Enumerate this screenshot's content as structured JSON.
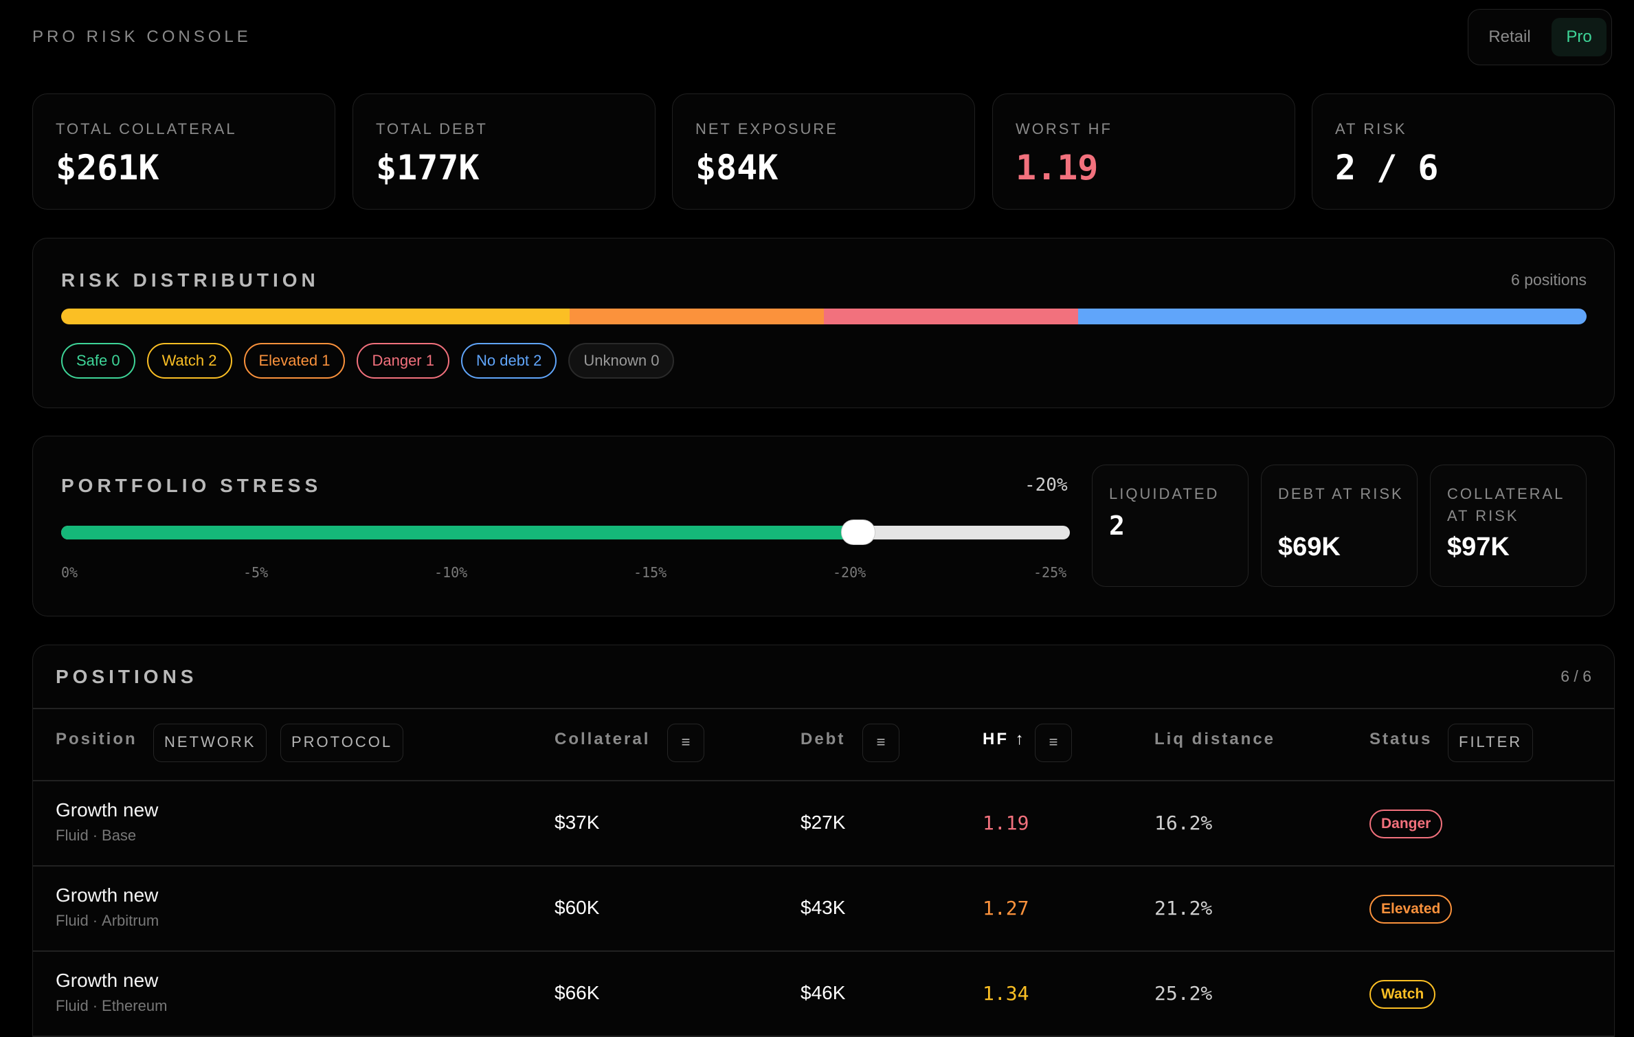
{
  "header": {
    "title": "PRO RISK CONSOLE",
    "modes": [
      "Retail",
      "Pro"
    ],
    "active_mode": "Pro"
  },
  "stats": [
    {
      "label": "TOTAL COLLATERAL",
      "value": "$261K"
    },
    {
      "label": "TOTAL DEBT",
      "value": "$177K"
    },
    {
      "label": "NET EXPOSURE",
      "value": "$84K"
    },
    {
      "label": "WORST HF",
      "value": "1.19"
    },
    {
      "label": "AT RISK",
      "value": "2 / 6"
    }
  ],
  "risk_distribution": {
    "title": "RISK DISTRIBUTION",
    "meta": "6 positions",
    "segments": [
      {
        "name": "Watch",
        "count": 2,
        "color": "#fbbf24"
      },
      {
        "name": "Elevated",
        "count": 1,
        "color": "#fb923c"
      },
      {
        "name": "Danger",
        "count": 1,
        "color": "#f2717d"
      },
      {
        "name": "No debt",
        "count": 2,
        "color": "#60a5fa"
      }
    ],
    "pills": [
      {
        "label": "Safe 0",
        "color": "#3ed598"
      },
      {
        "label": "Watch 2",
        "color": "#fbbf24"
      },
      {
        "label": "Elevated 1",
        "color": "#fb923c"
      },
      {
        "label": "Danger 1",
        "color": "#f2717d"
      },
      {
        "label": "No debt 2",
        "color": "#60a5fa"
      },
      {
        "label": "Unknown 0",
        "color": "#9a9a9a"
      }
    ]
  },
  "stress": {
    "title": "PORTFOLIO STRESS",
    "value_label": "-20%",
    "slider_fraction": 0.79,
    "ticks": [
      "0%",
      "-5%",
      "-10%",
      "-15%",
      "-20%",
      "-25%"
    ],
    "cards": [
      {
        "label": "LIQUIDATED",
        "value": "2"
      },
      {
        "label": "DEBT AT RISK",
        "value": "$69K"
      },
      {
        "label": "COLLATERAL AT RISK",
        "value": "$97K"
      }
    ]
  },
  "positions": {
    "title": "POSITIONS",
    "meta": "6 / 6",
    "headers": {
      "position": "Position",
      "network_btn": "NETWORK",
      "protocol_btn": "PROTOCOL",
      "collateral": "Collateral",
      "debt": "Debt",
      "hf": "HF ↑",
      "liq": "Liq distance",
      "status": "Status",
      "filter_btn": "FILTER",
      "sort_glyph": "≡"
    },
    "rows": [
      {
        "name": "Growth new",
        "protocol": "Fluid",
        "network": "Base",
        "collateral": "$37K",
        "debt": "$27K",
        "hf": "1.19",
        "liq": "16.2%",
        "status": "Danger",
        "color": "#f2717d"
      },
      {
        "name": "Growth new",
        "protocol": "Fluid",
        "network": "Arbitrum",
        "collateral": "$60K",
        "debt": "$43K",
        "hf": "1.27",
        "liq": "21.2%",
        "status": "Elevated",
        "color": "#fb923c"
      },
      {
        "name": "Growth new",
        "protocol": "Fluid",
        "network": "Ethereum",
        "collateral": "$66K",
        "debt": "$46K",
        "hf": "1.34",
        "liq": "25.2%",
        "status": "Watch",
        "color": "#fbbf24"
      }
    ]
  }
}
